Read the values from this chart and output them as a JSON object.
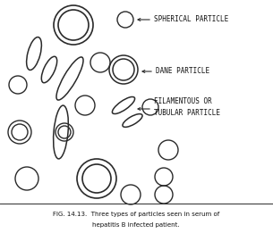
{
  "title_line1": "FIG. 14.13.  Three types of particles seen in serum of",
  "title_line2": "hepatitis B infected patient.",
  "label_spherical": "SPHERICAL PARTICLE",
  "label_dane": "DANE PARTICLE",
  "label_filamentous1": "FILAMENTOUS OR",
  "label_filamentous2": "TUBULAR PARTICLE",
  "bg_color": "#ffffff",
  "line_color": "#2a2a2a",
  "text_color": "#111111",
  "lw": 1.0
}
